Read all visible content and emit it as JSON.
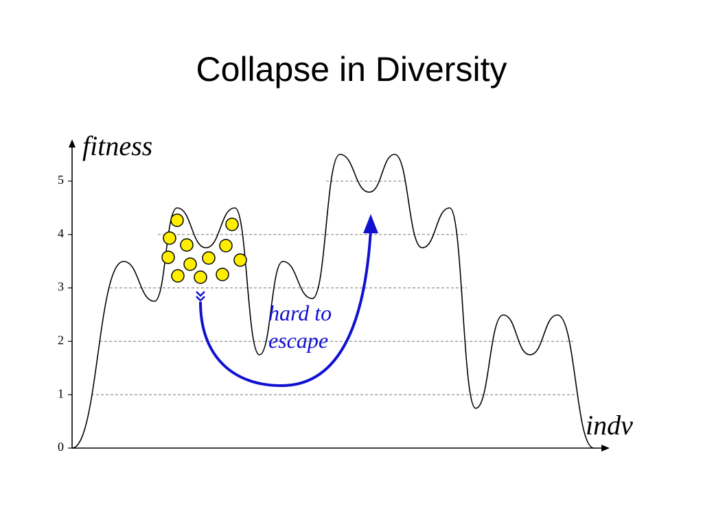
{
  "title": "Collapse in Diversity",
  "axes": {
    "y_label": "fitness",
    "x_label": "indv",
    "yticks": [
      0,
      1,
      2,
      3,
      4,
      5
    ]
  },
  "annotation": {
    "lines": [
      "hard to",
      "escape"
    ]
  }
}
